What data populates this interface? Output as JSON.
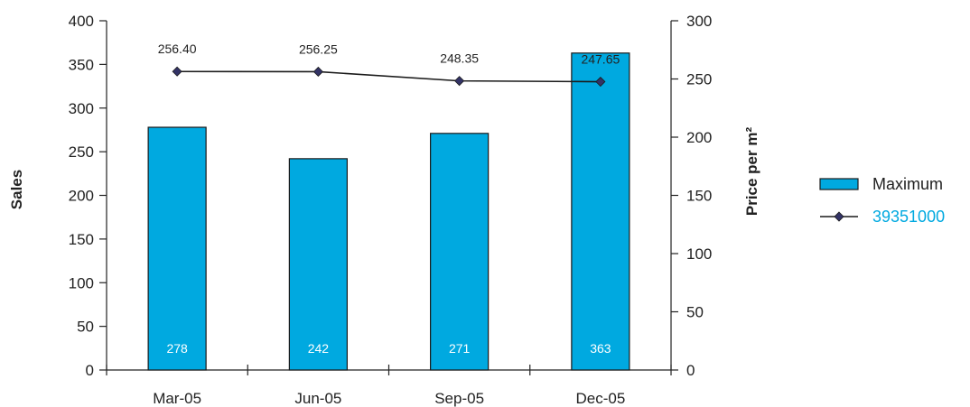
{
  "chart_data": {
    "type": "bar",
    "categories": [
      "Mar-05",
      "Jun-05",
      "Sep-05",
      "Dec-05"
    ],
    "series": [
      {
        "name": "Maximum",
        "type": "bar",
        "axis": "left",
        "values": [
          278,
          242,
          271,
          363
        ],
        "value_labels": [
          "278",
          "242",
          "271",
          "363"
        ],
        "color": "#00a9e0"
      },
      {
        "name": "39351000",
        "type": "line",
        "axis": "right",
        "values": [
          256.4,
          256.25,
          248.35,
          247.65
        ],
        "value_labels": [
          "256.40",
          "256.25",
          "248.35",
          "247.65"
        ],
        "color": "#1a1a1a",
        "marker_color": "#333366"
      }
    ],
    "y_left": {
      "label": "Sales",
      "min": 0,
      "max": 400,
      "ticks": [
        0,
        50,
        100,
        150,
        200,
        250,
        300,
        350,
        400
      ],
      "tick_labels": [
        "0",
        "50",
        "100",
        "150",
        "200",
        "250",
        "300",
        "350",
        "400"
      ]
    },
    "y_right": {
      "label": "Price per m²",
      "min": 0,
      "max": 300,
      "ticks": [
        0,
        50,
        100,
        150,
        200,
        250,
        300
      ],
      "tick_labels": [
        "0",
        "50",
        "100",
        "150",
        "200",
        "250",
        "300"
      ]
    },
    "legend": {
      "position": "right",
      "items": [
        {
          "label": "Maximum",
          "kind": "bar",
          "color": "#00a9e0",
          "text_color": "#222222"
        },
        {
          "label": "39351000",
          "kind": "line",
          "color": "#1a1a1a",
          "text_color": "#00a9e0"
        }
      ]
    },
    "grid": false
  }
}
